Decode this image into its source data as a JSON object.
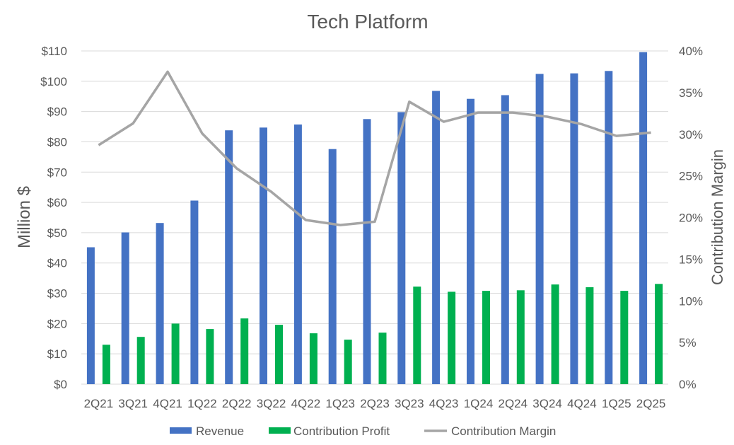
{
  "chart_data": {
    "type": "bar",
    "title": "Tech Platform",
    "categories": [
      "2Q21",
      "3Q21",
      "4Q21",
      "1Q22",
      "2Q22",
      "3Q22",
      "4Q22",
      "1Q23",
      "2Q23",
      "3Q23",
      "4Q23",
      "1Q24",
      "2Q24",
      "3Q24",
      "4Q24",
      "1Q25",
      "2Q25"
    ],
    "series": [
      {
        "name": "Revenue",
        "type": "bar",
        "axis": "left",
        "color": "#4472c4",
        "values": [
          45.2,
          50.1,
          53.2,
          60.6,
          83.8,
          84.7,
          85.7,
          77.6,
          87.5,
          89.8,
          96.8,
          94.2,
          95.4,
          102.4,
          102.6,
          103.4,
          109.6
        ]
      },
      {
        "name": "Contribution Profit",
        "type": "bar",
        "axis": "left",
        "color": "#00b050",
        "values": [
          13.0,
          15.6,
          20.0,
          18.2,
          21.7,
          19.6,
          16.8,
          14.7,
          17.0,
          32.2,
          30.5,
          30.8,
          31.0,
          32.9,
          32.0,
          30.8,
          33.1
        ]
      },
      {
        "name": "Contribution Margin",
        "type": "line",
        "axis": "right",
        "color": "#a5a5a5",
        "values": [
          28.7,
          31.3,
          37.5,
          30.1,
          25.9,
          23.1,
          19.7,
          19.1,
          19.5,
          33.9,
          31.5,
          32.6,
          32.6,
          32.1,
          31.2,
          29.8,
          30.2
        ]
      }
    ],
    "ylabel": "Million $",
    "ylabel_right": "Contribution Margin",
    "ylim": [
      0,
      110
    ],
    "ylim_right": [
      0,
      40
    ],
    "yticks": [
      "$0",
      "$10",
      "$20",
      "$30",
      "$40",
      "$50",
      "$60",
      "$70",
      "$80",
      "$90",
      "$100",
      "$110"
    ],
    "yticks_right": [
      "0%",
      "5%",
      "10%",
      "15%",
      "20%",
      "25%",
      "30%",
      "35%",
      "40%"
    ],
    "grid": true,
    "legend_position": "bottom"
  }
}
